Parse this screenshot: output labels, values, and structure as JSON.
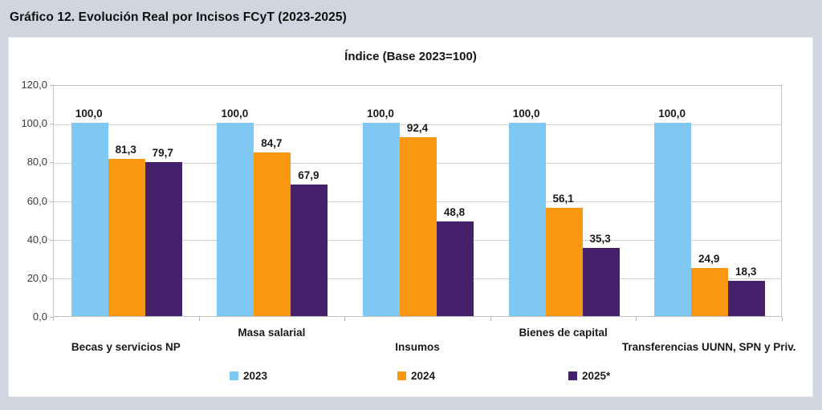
{
  "page": {
    "title": "Gráfico 12. Evolución Real por Incisos FCyT (2023-2025)",
    "background_color": "#D1D5E0"
  },
  "chart_data": {
    "type": "bar",
    "title": "Índice (Base 2023=100)",
    "categories": [
      "Becas y servicios NP",
      "Masa salarial",
      "Insumos",
      "Bienes de capital",
      "Transferencias UUNN, SPN y Priv."
    ],
    "series": [
      {
        "name": "2023",
        "color": "#7FC8F4",
        "values": [
          100.0,
          100.0,
          100.0,
          100.0,
          100.0
        ],
        "labels": [
          "100,0",
          "100,0",
          "100,0",
          "100,0",
          "100,0"
        ]
      },
      {
        "name": "2024",
        "color": "#FA9711",
        "values": [
          81.3,
          84.7,
          92.4,
          56.1,
          24.9
        ],
        "labels": [
          "81,3",
          "84,7",
          "92,4",
          "56,1",
          "24,9"
        ]
      },
      {
        "name": "2025*",
        "color": "#45216B",
        "values": [
          79.7,
          67.9,
          48.8,
          35.3,
          18.3
        ],
        "labels": [
          "79,7",
          "67,9",
          "48,8",
          "35,3",
          "18,3"
        ]
      }
    ],
    "ylim": [
      0,
      120
    ],
    "y_ticks": {
      "values": [
        120,
        100,
        80,
        60,
        40,
        20,
        0
      ],
      "labels": [
        "120,0",
        "100,0",
        "80,0",
        "60,0",
        "40,0",
        "20,0",
        "0,0"
      ]
    },
    "grid": true,
    "legend_position": "bottom",
    "decimal_separator": ","
  }
}
